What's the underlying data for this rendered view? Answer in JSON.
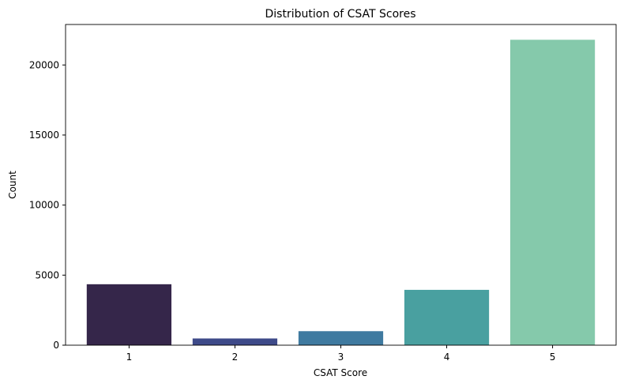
{
  "chart_data": {
    "type": "bar",
    "title": "Distribution of CSAT Scores",
    "xlabel": "CSAT Score",
    "ylabel": "Count",
    "categories": [
      "1",
      "2",
      "3",
      "4",
      "5"
    ],
    "values": [
      4350,
      480,
      1000,
      3950,
      21800
    ],
    "colors": [
      "#35264a",
      "#3e4a89",
      "#3f7aa0",
      "#49a0a0",
      "#85c9ab"
    ],
    "ylim": [
      0,
      22890
    ],
    "yticks": [
      0,
      5000,
      10000,
      15000,
      20000
    ],
    "grid": false,
    "legend": "none"
  }
}
